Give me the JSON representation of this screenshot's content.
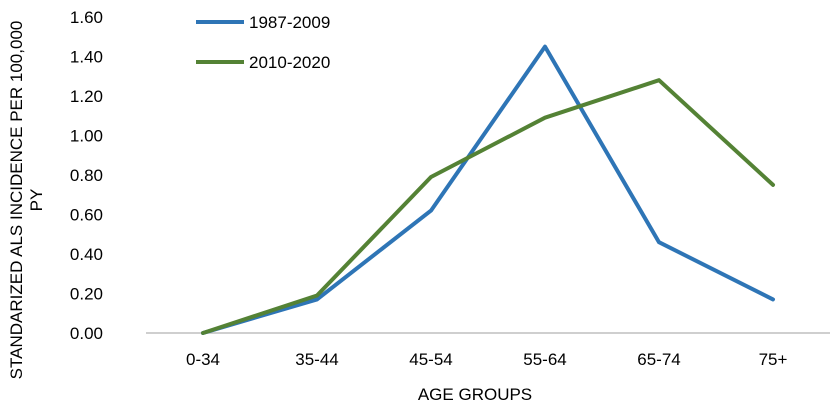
{
  "chart_data": {
    "type": "line",
    "title": "",
    "xlabel": "AGE GROUPS",
    "ylabel_lines": [
      "STANDARIZED ALS INCIDENCE PER 100,000",
      "PY"
    ],
    "categories": [
      "0-34",
      "35-44",
      "45-54",
      "55-64",
      "65-74",
      "75+"
    ],
    "y_ticks": [
      "0.00",
      "0.20",
      "0.40",
      "0.60",
      "0.80",
      "1.00",
      "1.20",
      "1.40",
      "1.60"
    ],
    "ylim": [
      0,
      1.6
    ],
    "y_step": 0.2,
    "grid": false,
    "legend_position": "top-left",
    "series": [
      {
        "name": "1987-2009",
        "color": "#2E75B6",
        "values": [
          0.0,
          0.17,
          0.62,
          1.45,
          0.46,
          0.17
        ]
      },
      {
        "name": "2010-2020",
        "color": "#548235",
        "values": [
          0.0,
          0.19,
          0.79,
          1.09,
          1.28,
          0.75
        ]
      }
    ],
    "axis_color": "#BFBFBF"
  }
}
